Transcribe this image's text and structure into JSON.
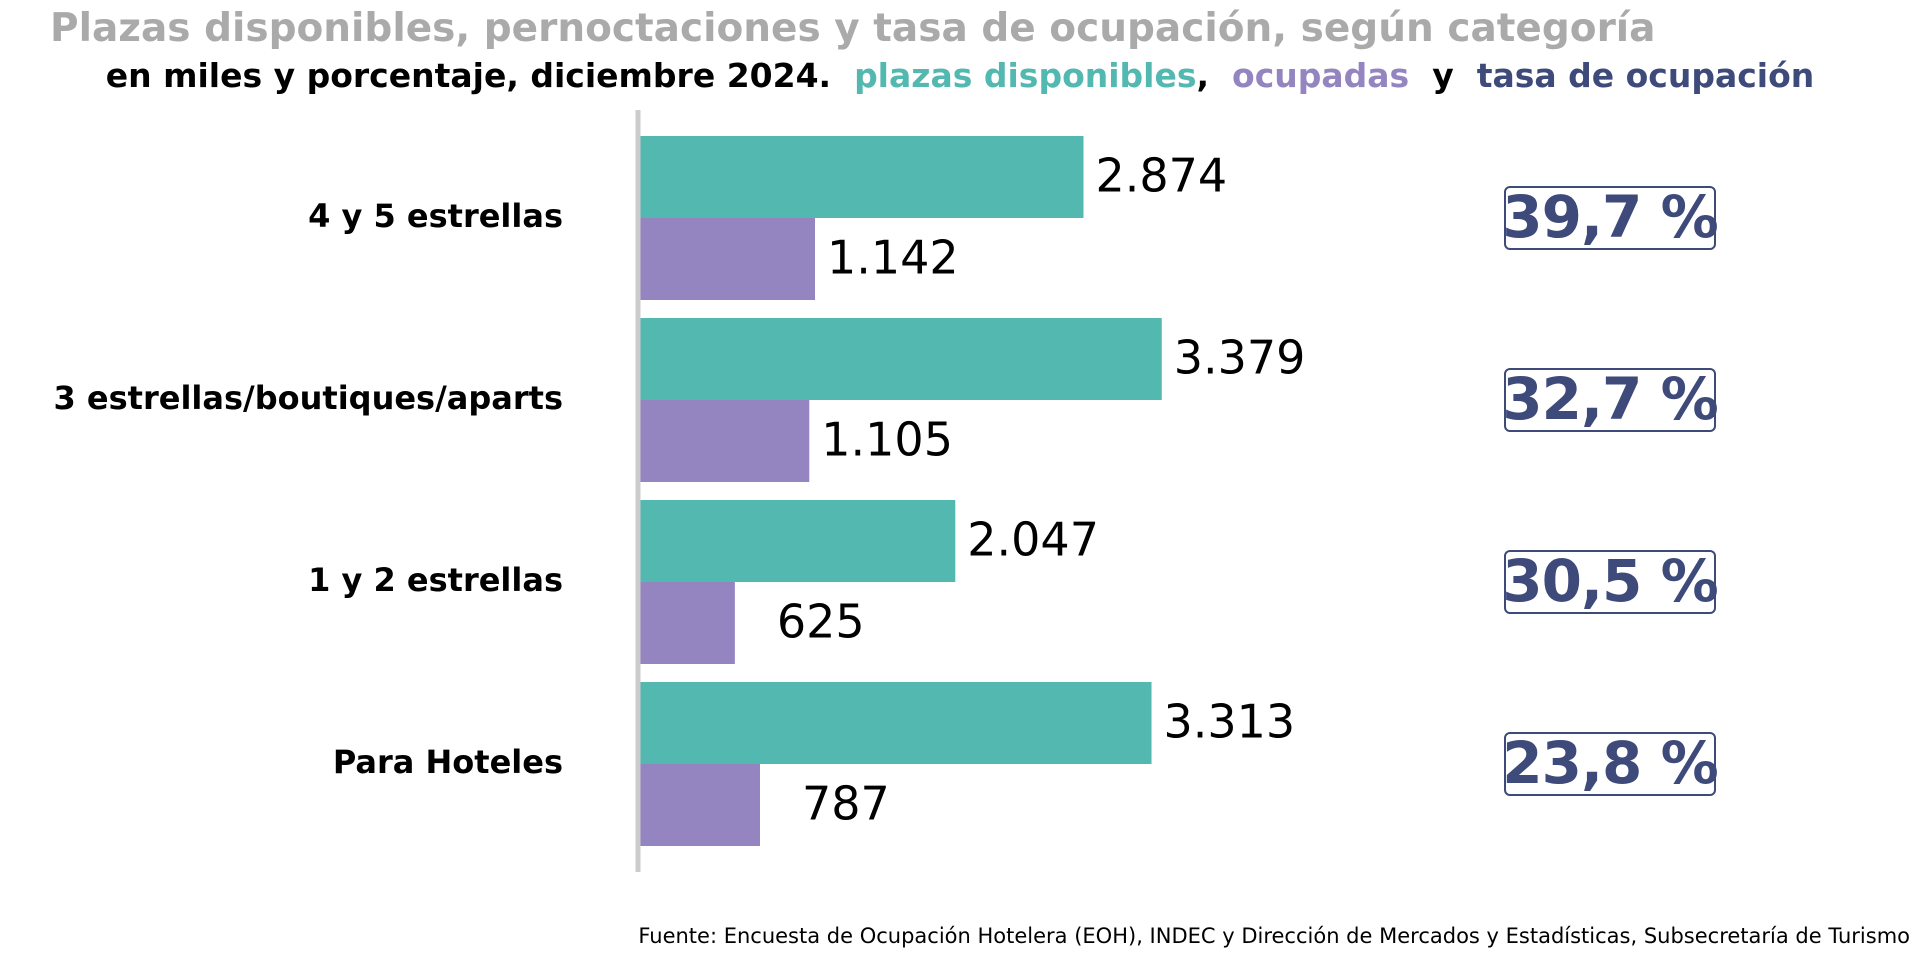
{
  "chart_data": {
    "type": "bar",
    "orientation": "horizontal",
    "title": "Plazas disponibles, pernoctaciones y tasa de ocupación, según categoría",
    "subtitle": {
      "prefix": "en miles y porcentaje, diciembre 2024.",
      "series1": "plazas disponibles",
      "sep1": ",",
      "series2": "ocupadas",
      "sep2": "y",
      "series3": "tasa de ocupación"
    },
    "categories": [
      "4 y 5 estrellas",
      "3 estrellas/boutiques/aparts",
      "1 y 2 estrellas",
      "Para Hoteles"
    ],
    "series": [
      {
        "name": "plazas disponibles",
        "values": [
          2874,
          3379,
          2047,
          3313
        ],
        "labels": [
          "2.874",
          "3.379",
          "2.047",
          "3.313"
        ],
        "color": "#52b8b0"
      },
      {
        "name": "ocupadas",
        "values": [
          1142,
          1105,
          625,
          787
        ],
        "labels": [
          "1.142",
          "1.105",
          "625",
          "787"
        ],
        "color": "#9485c0"
      }
    ],
    "occupancy_rate": {
      "name": "tasa de ocupación",
      "values": [
        39.7,
        32.7,
        30.5,
        23.8
      ],
      "labels": [
        "39,7 %",
        "32,7 %",
        "30,5 %",
        "23,8 %"
      ],
      "color": "#3d4a7a"
    },
    "xlim": [
      0,
      4000
    ],
    "grid": false,
    "legend": "inline-subtitle",
    "source": "Fuente: Encuesta de Ocupación Hotelera (EOH), INDEC y Dirección de Mercados y Estadísticas, Subsecretaría de Turismo"
  },
  "colors": {
    "title": "#aaaaaa",
    "axis": "#cccccc",
    "text": "#000000"
  }
}
